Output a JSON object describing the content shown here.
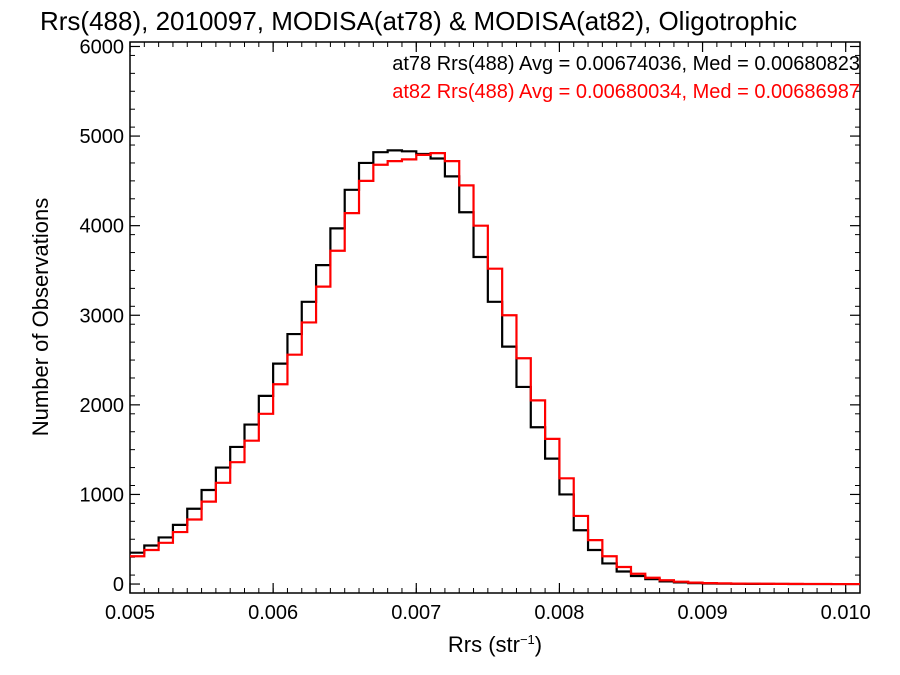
{
  "chart_data": {
    "type": "line",
    "title": "Rrs(488), 2010097, MODISA(at78) & MODISA(at82), Oligotrophic",
    "xlabel": "Rrs (str",
    "xlabel_sup": "−1",
    "xlabel_tail": ")",
    "ylabel": "Number of Observations",
    "xlim": [
      0.005,
      0.0101
    ],
    "ylim": [
      -100,
      6050
    ],
    "x_ticks": [
      0.005,
      0.006,
      0.007,
      0.008,
      0.009,
      0.01
    ],
    "x_tick_labels": [
      "0.005",
      "0.006",
      "0.007",
      "0.008",
      "0.009",
      "0.010"
    ],
    "y_ticks": [
      0,
      1000,
      2000,
      3000,
      4000,
      5000,
      6000
    ],
    "y_tick_labels": [
      "0",
      "1000",
      "2000",
      "3000",
      "4000",
      "5000",
      "6000"
    ],
    "legend_position": "top-right",
    "grid": false,
    "step_style": "histogram",
    "x": [
      0.005,
      0.0051,
      0.0052,
      0.0053,
      0.0054,
      0.0055,
      0.0056,
      0.0057,
      0.0058,
      0.0059,
      0.006,
      0.0061,
      0.0062,
      0.0063,
      0.0064,
      0.0065,
      0.0066,
      0.0067,
      0.0068,
      0.0069,
      0.007,
      0.0071,
      0.0072,
      0.0073,
      0.0074,
      0.0075,
      0.0076,
      0.0077,
      0.0078,
      0.0079,
      0.008,
      0.0081,
      0.0082,
      0.0083,
      0.0084,
      0.0085,
      0.0086,
      0.0087,
      0.0088,
      0.0089,
      0.009,
      0.0091,
      0.0092,
      0.0093,
      0.0094,
      0.0095,
      0.0096,
      0.0097,
      0.0098,
      0.0099,
      0.01,
      0.0101
    ],
    "series": [
      {
        "name": "at78",
        "color": "#000000",
        "legend": "at78 Rrs(488) Avg = 0.00674036, Med = 0.00680823",
        "values": [
          350,
          430,
          520,
          660,
          840,
          1050,
          1300,
          1530,
          1780,
          2100,
          2460,
          2790,
          3150,
          3560,
          3970,
          4400,
          4700,
          4820,
          4840,
          4830,
          4800,
          4750,
          4550,
          4150,
          3650,
          3150,
          2650,
          2200,
          1750,
          1400,
          1000,
          600,
          380,
          230,
          140,
          90,
          55,
          30,
          18,
          10,
          6,
          4,
          3,
          2,
          1,
          1,
          0,
          0,
          0,
          0,
          0,
          0
        ]
      },
      {
        "name": "at82",
        "color": "#ff0000",
        "legend": "at82 Rrs(488) Avg = 0.00680034, Med = 0.00686987",
        "values": [
          310,
          380,
          460,
          580,
          720,
          920,
          1130,
          1360,
          1600,
          1900,
          2230,
          2560,
          2920,
          3320,
          3720,
          4140,
          4500,
          4680,
          4720,
          4740,
          4790,
          4810,
          4720,
          4450,
          4000,
          3520,
          3000,
          2520,
          2050,
          1620,
          1180,
          760,
          490,
          310,
          190,
          115,
          70,
          42,
          26,
          16,
          10,
          7,
          5,
          4,
          3,
          2,
          2,
          1,
          1,
          0,
          0,
          0
        ]
      }
    ]
  }
}
